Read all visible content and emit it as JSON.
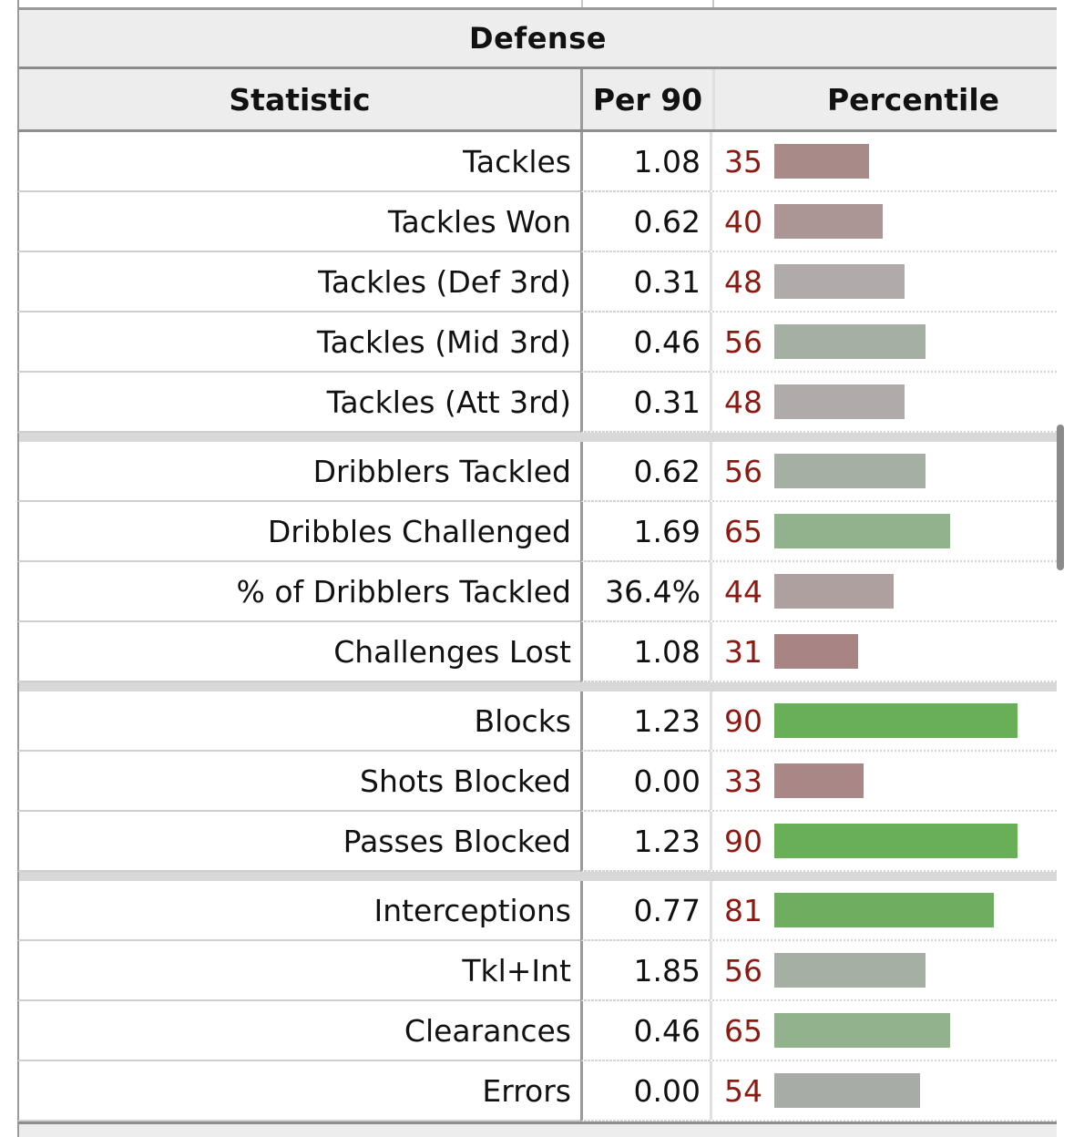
{
  "table": {
    "caption": "Defense",
    "headers": {
      "statistic": "Statistic",
      "per90": "Per 90",
      "percentile": "Percentile"
    },
    "groups": [
      {
        "rows": [
          {
            "stat": "Tackles",
            "per90": "1.08",
            "pct": 35,
            "color": "#a88a88"
          },
          {
            "stat": "Tackles Won",
            "per90": "0.62",
            "pct": 40,
            "color": "#ab9695"
          },
          {
            "stat": "Tackles (Def 3rd)",
            "per90": "0.31",
            "pct": 48,
            "color": "#b0aaaa"
          },
          {
            "stat": "Tackles (Mid 3rd)",
            "per90": "0.46",
            "pct": 56,
            "color": "#a5afa4"
          },
          {
            "stat": "Tackles (Att 3rd)",
            "per90": "0.31",
            "pct": 48,
            "color": "#b0aaaa"
          }
        ]
      },
      {
        "rows": [
          {
            "stat": "Dribblers Tackled",
            "per90": "0.62",
            "pct": 56,
            "color": "#a5afa4"
          },
          {
            "stat": "Dribbles Challenged",
            "per90": "1.69",
            "pct": 65,
            "color": "#91b28d"
          },
          {
            "stat": "% of Dribblers Tackled",
            "per90": "36.4%",
            "pct": 44,
            "color": "#afa0a0"
          },
          {
            "stat": "Challenges Lost",
            "per90": "1.08",
            "pct": 31,
            "color": "#a88584"
          }
        ]
      },
      {
        "rows": [
          {
            "stat": "Blocks",
            "per90": "1.23",
            "pct": 90,
            "color": "#68af57"
          },
          {
            "stat": "Shots Blocked",
            "per90": "0.00",
            "pct": 33,
            "color": "#a88786"
          },
          {
            "stat": "Passes Blocked",
            "per90": "1.23",
            "pct": 90,
            "color": "#68af57"
          }
        ]
      },
      {
        "rows": [
          {
            "stat": "Interceptions",
            "per90": "0.77",
            "pct": 81,
            "color": "#6fae60"
          },
          {
            "stat": "Tkl+Int",
            "per90": "1.85",
            "pct": 56,
            "color": "#a5afa4"
          },
          {
            "stat": "Clearances",
            "per90": "0.46",
            "pct": 65,
            "color": "#91b28d"
          },
          {
            "stat": "Errors",
            "per90": "0.00",
            "pct": 54,
            "color": "#a8aca6"
          }
        ]
      }
    ]
  }
}
